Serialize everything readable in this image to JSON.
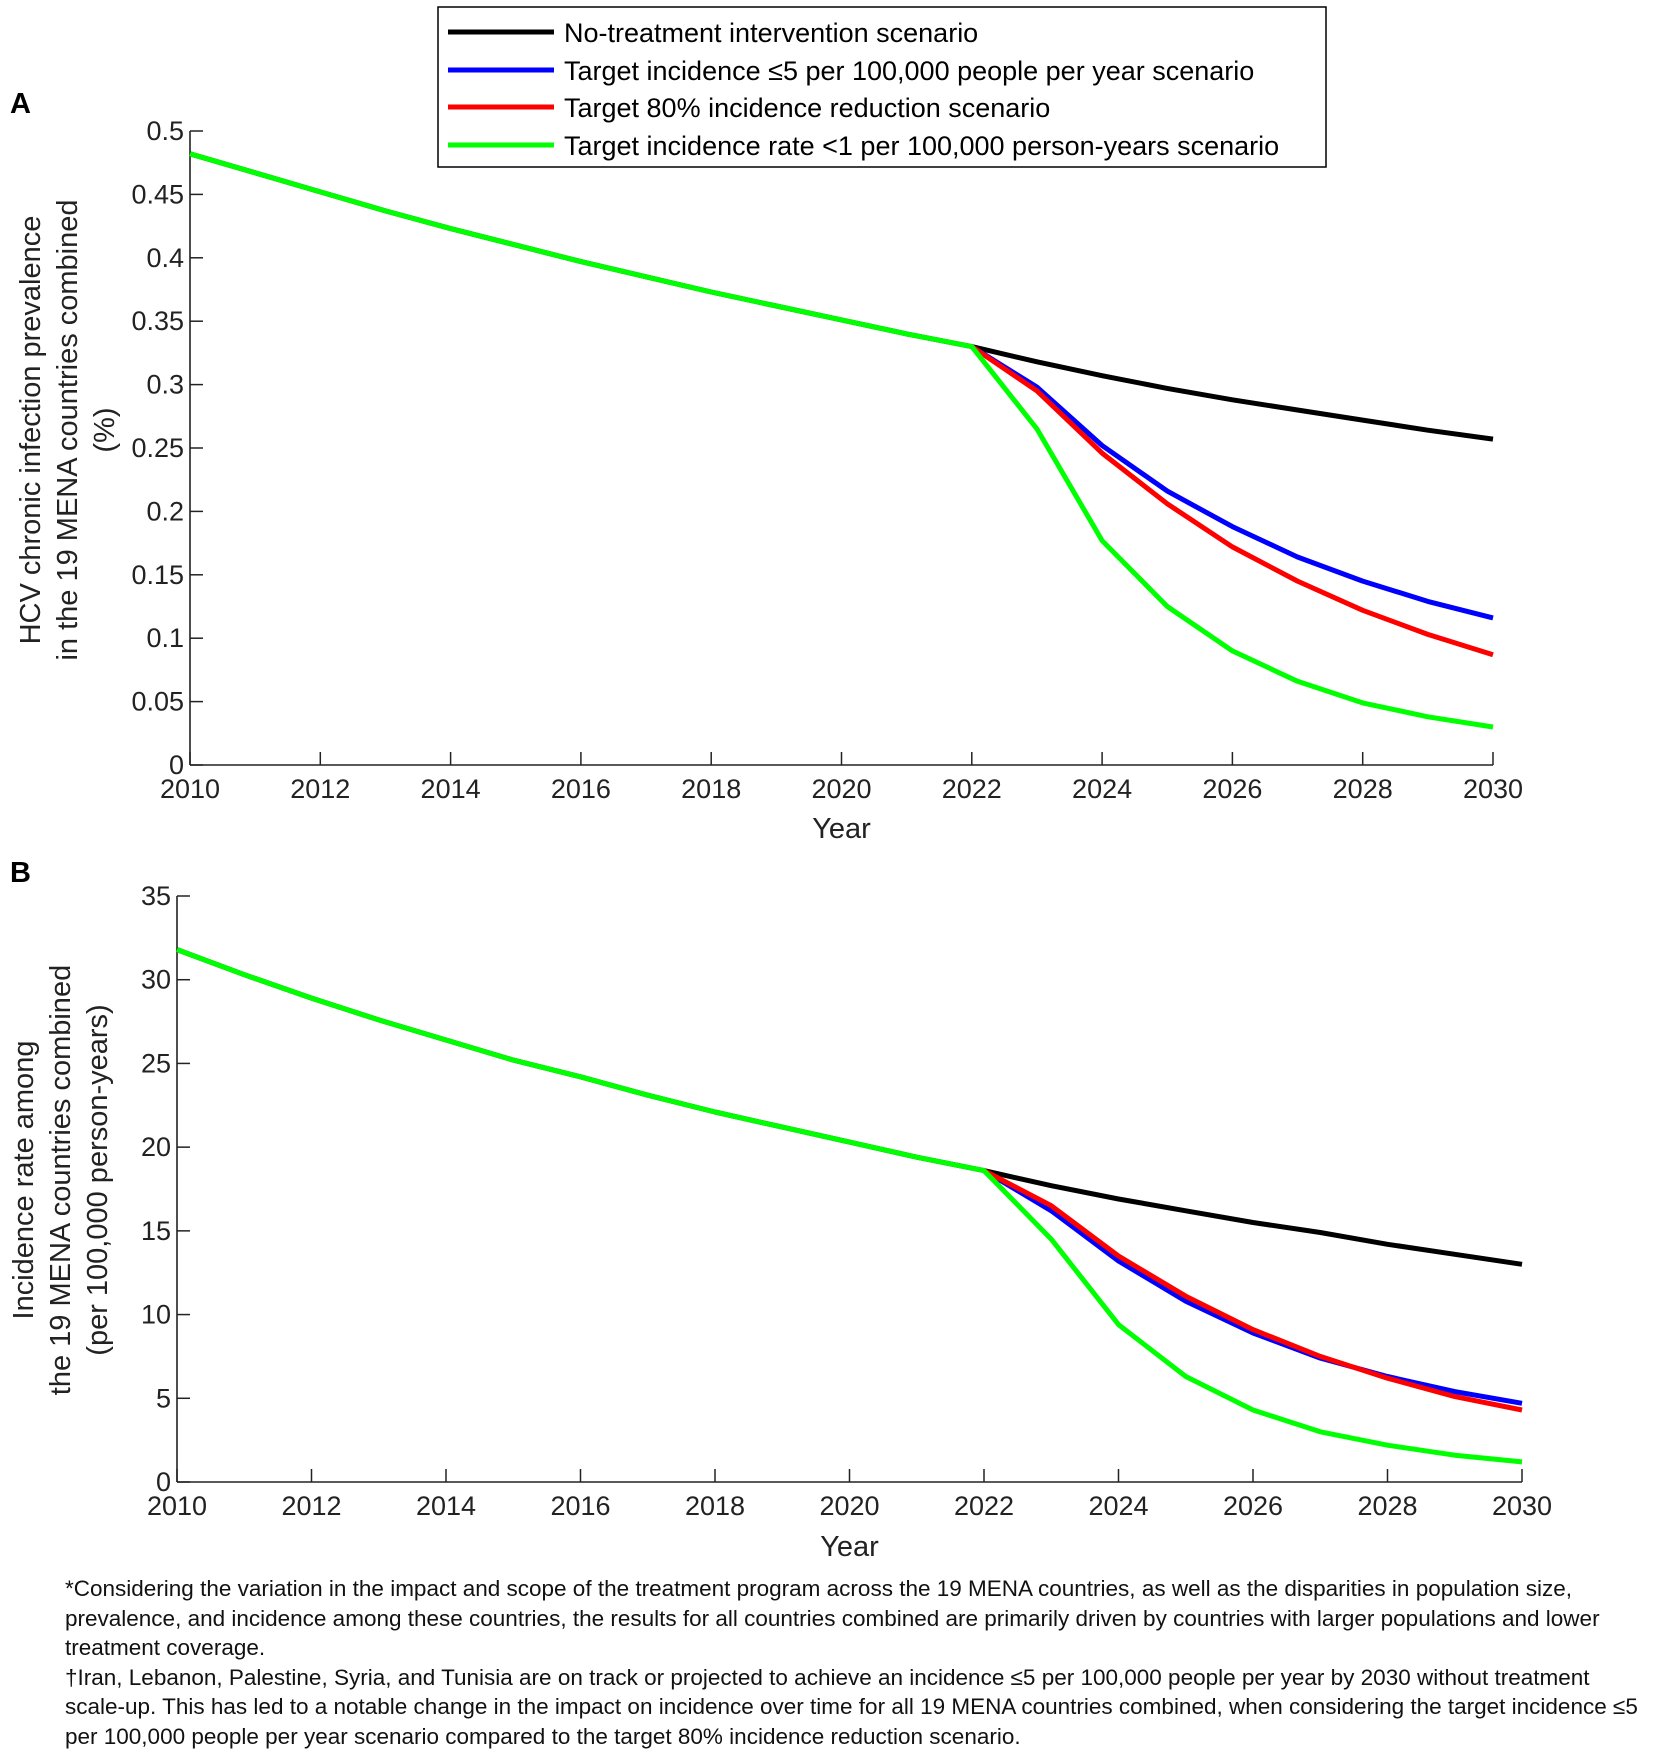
{
  "legend": {
    "entries": [
      {
        "label": "No-treatment intervention scenario",
        "color": "#000000"
      },
      {
        "label": "Target incidence ≤5 per 100,000 people per year scenario",
        "color": "#0000ff"
      },
      {
        "label": "Target 80% incidence reduction scenario",
        "color": "#ff0000"
      },
      {
        "label": "Target incidence rate <1 per 100,000 person-years scenario",
        "color": "#00ff00"
      }
    ]
  },
  "chart_data": [
    {
      "type": "line",
      "panel_label": "A",
      "xlabel": "Year",
      "ylabel_lines": [
        "HCV chronic infection prevalence",
        "in the 19 MENA countries combined",
        "(%)"
      ],
      "xlim": [
        2010,
        2030
      ],
      "ylim": [
        0,
        0.5
      ],
      "xticks": [
        2010,
        2012,
        2014,
        2016,
        2018,
        2020,
        2022,
        2024,
        2026,
        2028,
        2030
      ],
      "yticks": [
        0,
        0.05,
        0.1,
        0.15,
        0.2,
        0.25,
        0.3,
        0.35,
        0.4,
        0.45,
        0.5
      ],
      "ytick_labels": [
        "0",
        "0.05",
        "0.1",
        "0.15",
        "0.2",
        "0.25",
        "0.3",
        "0.35",
        "0.4",
        "0.45",
        "0.5"
      ],
      "grid": false,
      "series": [
        {
          "name": "No-treatment intervention scenario",
          "color": "#000000",
          "x": [
            2010,
            2011,
            2012,
            2013,
            2014,
            2015,
            2016,
            2017,
            2018,
            2019,
            2020,
            2021,
            2022,
            2023,
            2024,
            2025,
            2026,
            2027,
            2028,
            2029,
            2030
          ],
          "values": [
            0.482,
            0.467,
            0.452,
            0.437,
            0.423,
            0.41,
            0.397,
            0.385,
            0.373,
            0.362,
            0.351,
            0.34,
            0.33,
            0.318,
            0.307,
            0.297,
            0.288,
            0.28,
            0.272,
            0.264,
            0.257
          ]
        },
        {
          "name": "Target incidence ≤5 per 100,000 people per year scenario",
          "color": "#0000ff",
          "x": [
            2022,
            2023,
            2024,
            2025,
            2026,
            2027,
            2028,
            2029,
            2030
          ],
          "values": [
            0.33,
            0.298,
            0.252,
            0.216,
            0.188,
            0.164,
            0.145,
            0.129,
            0.116
          ]
        },
        {
          "name": "Target 80% incidence reduction scenario",
          "color": "#ff0000",
          "x": [
            2022,
            2023,
            2024,
            2025,
            2026,
            2027,
            2028,
            2029,
            2030
          ],
          "values": [
            0.33,
            0.295,
            0.246,
            0.206,
            0.172,
            0.145,
            0.122,
            0.103,
            0.087
          ]
        },
        {
          "name": "Target incidence rate <1 per 100,000 person-years scenario",
          "color": "#00ff00",
          "x": [
            2010,
            2011,
            2012,
            2013,
            2014,
            2015,
            2016,
            2017,
            2018,
            2019,
            2020,
            2021,
            2022,
            2023,
            2024,
            2025,
            2026,
            2027,
            2028,
            2029,
            2030
          ],
          "values": [
            0.482,
            0.467,
            0.452,
            0.437,
            0.423,
            0.41,
            0.397,
            0.385,
            0.373,
            0.362,
            0.351,
            0.34,
            0.33,
            0.265,
            0.177,
            0.125,
            0.09,
            0.066,
            0.049,
            0.038,
            0.03
          ]
        }
      ]
    },
    {
      "type": "line",
      "panel_label": "B",
      "xlabel": "Year",
      "ylabel_lines": [
        "Incidence rate among",
        "the 19 MENA countries combined",
        "(per 100,000 person-years)"
      ],
      "xlim": [
        2010,
        2030
      ],
      "ylim": [
        0,
        35
      ],
      "xticks": [
        2010,
        2012,
        2014,
        2016,
        2018,
        2020,
        2022,
        2024,
        2026,
        2028,
        2030
      ],
      "yticks": [
        0,
        5,
        10,
        15,
        20,
        25,
        30,
        35
      ],
      "ytick_labels": [
        "0",
        "5",
        "10",
        "15",
        "20",
        "25",
        "30",
        "35"
      ],
      "grid": false,
      "series": [
        {
          "name": "No-treatment intervention scenario",
          "color": "#000000",
          "x": [
            2010,
            2011,
            2012,
            2013,
            2014,
            2015,
            2016,
            2017,
            2018,
            2019,
            2020,
            2021,
            2022,
            2023,
            2024,
            2025,
            2026,
            2027,
            2028,
            2029,
            2030
          ],
          "values": [
            31.8,
            30.3,
            28.9,
            27.6,
            26.4,
            25.2,
            24.2,
            23.1,
            22.1,
            21.2,
            20.3,
            19.4,
            18.6,
            17.7,
            16.9,
            16.2,
            15.5,
            14.9,
            14.2,
            13.6,
            13.0
          ]
        },
        {
          "name": "Target incidence ≤5 per 100,000 people per year scenario",
          "color": "#0000ff",
          "x": [
            2022,
            2023,
            2024,
            2025,
            2026,
            2027,
            2028,
            2029,
            2030
          ],
          "values": [
            18.6,
            16.2,
            13.2,
            10.8,
            8.9,
            7.4,
            6.3,
            5.4,
            4.7
          ]
        },
        {
          "name": "Target 80% incidence reduction scenario",
          "color": "#ff0000",
          "x": [
            2022,
            2023,
            2024,
            2025,
            2026,
            2027,
            2028,
            2029,
            2030
          ],
          "values": [
            18.6,
            16.5,
            13.5,
            11.1,
            9.1,
            7.5,
            6.2,
            5.1,
            4.3
          ]
        },
        {
          "name": "Target incidence rate <1 per 100,000 person-years scenario",
          "color": "#00ff00",
          "x": [
            2010,
            2011,
            2012,
            2013,
            2014,
            2015,
            2016,
            2017,
            2018,
            2019,
            2020,
            2021,
            2022,
            2023,
            2024,
            2025,
            2026,
            2027,
            2028,
            2029,
            2030
          ],
          "values": [
            31.8,
            30.3,
            28.9,
            27.6,
            26.4,
            25.2,
            24.2,
            23.1,
            22.1,
            21.2,
            20.3,
            19.4,
            18.6,
            14.5,
            9.4,
            6.3,
            4.3,
            3.0,
            2.2,
            1.6,
            1.2
          ]
        }
      ]
    }
  ],
  "footnotes": [
    "*Considering the variation in the impact and scope of the treatment program across the 19 MENA countries, as well as the disparities in population size, prevalence, and incidence among these countries, the results for all countries combined are primarily driven by countries with larger populations and lower treatment coverage.",
    "†Iran, Lebanon, Palestine, Syria, and Tunisia are on track or projected to achieve an incidence ≤5 per 100,000 people per year by 2030 without treatment scale-up. This has led to a notable change in the impact on incidence over time for all 19 MENA countries combined, when considering the target incidence ≤5 per 100,000 people per year scenario compared to the target 80% incidence reduction scenario."
  ]
}
